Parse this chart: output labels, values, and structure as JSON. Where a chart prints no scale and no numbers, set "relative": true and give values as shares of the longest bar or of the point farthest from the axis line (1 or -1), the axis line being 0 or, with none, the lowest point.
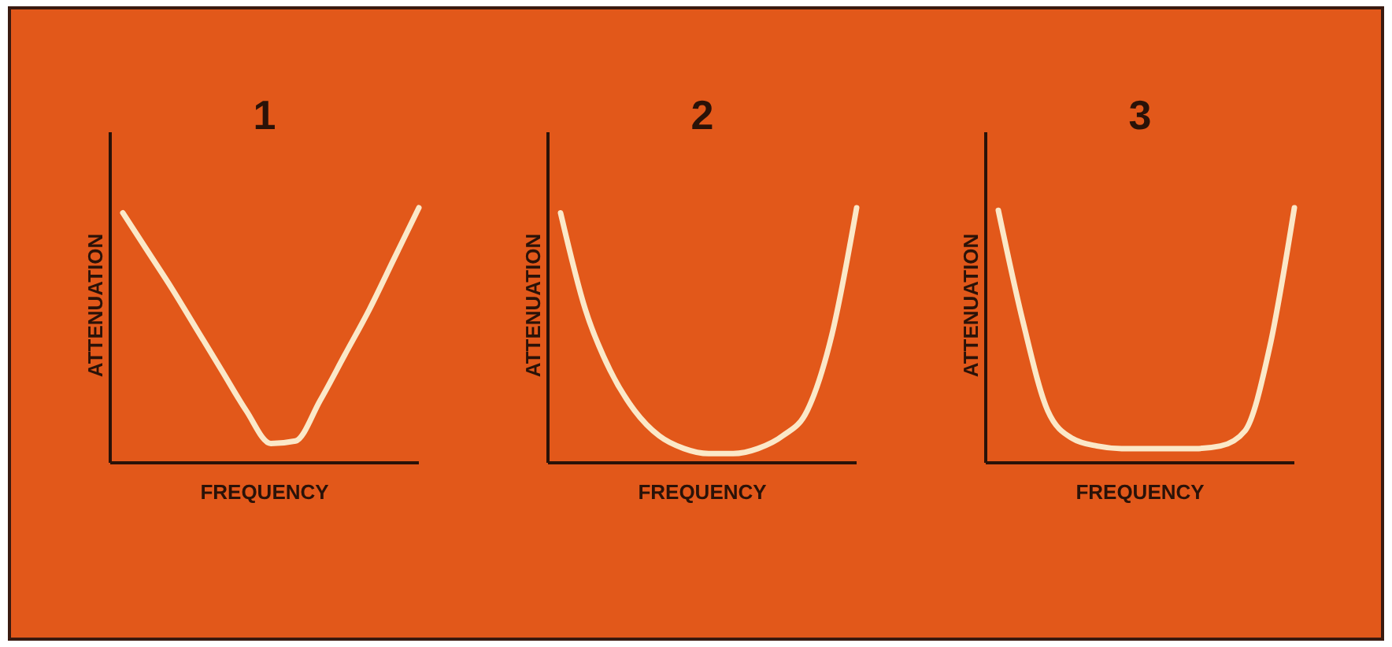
{
  "chart_data": [
    {
      "type": "line",
      "title": "1",
      "xlabel": "FREQUENCY",
      "ylabel": "ATTENUATION",
      "relative": true,
      "categories": [
        null,
        null,
        null,
        null,
        null,
        null,
        null,
        null,
        null,
        null,
        null,
        null,
        null
      ],
      "series": [
        {
          "color": "#fbe8c8",
          "values": [
            0.98,
            0.83,
            0.68,
            0.52,
            0.36,
            0.2,
            0.07,
            0.08,
            0.24,
            0.42,
            0.6,
            0.8,
            1
          ]
        }
      ]
    },
    {
      "type": "line",
      "title": "2",
      "xlabel": "FREQUENCY",
      "ylabel": "ATTENUATION",
      "relative": true,
      "categories": [
        null,
        null,
        null,
        null,
        null,
        null,
        null,
        null,
        null,
        null,
        null,
        null,
        null
      ],
      "series": [
        {
          "color": "#fbe8c8",
          "values": [
            0.98,
            0.6,
            0.36,
            0.2,
            0.1,
            0.05,
            0.03,
            0.03,
            0.05,
            0.1,
            0.2,
            0.5,
            1
          ]
        }
      ]
    },
    {
      "type": "line",
      "title": "3",
      "xlabel": "FREQUENCY",
      "ylabel": "ATTENUATION",
      "relative": true,
      "categories": [
        null,
        null,
        null,
        null,
        null,
        null,
        null,
        null,
        null,
        null,
        null,
        null,
        null
      ],
      "series": [
        {
          "color": "#fbe8c8",
          "values": [
            0.99,
            0.55,
            0.2,
            0.09,
            0.06,
            0.05,
            0.05,
            0.05,
            0.05,
            0.06,
            0.12,
            0.45,
            1
          ]
        }
      ]
    }
  ]
}
